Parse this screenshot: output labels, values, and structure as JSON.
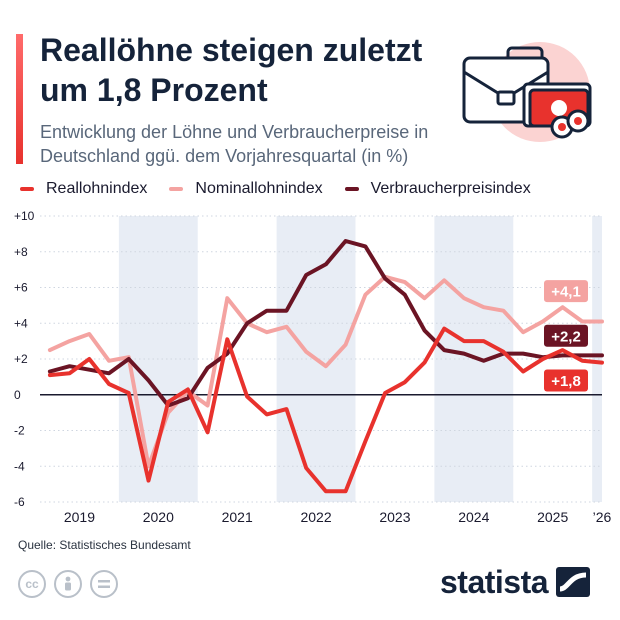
{
  "header": {
    "title": "Reallöhne steigen zuletzt um 1,8 Prozent",
    "subtitle": "Entwicklung der Löhne und Verbraucherpreise in Deutschland ggü. dem Vorjahresquartal (in %)"
  },
  "colors": {
    "real": "#e8322d",
    "nominal": "#f4a3a1",
    "cpi": "#6b1424",
    "band": "#e8edf5",
    "grid": "#cfd6e0"
  },
  "legend": [
    {
      "label": "Reallohnindex",
      "color": "#e8322d"
    },
    {
      "label": "Nominallohnindex",
      "color": "#f4a3a1"
    },
    {
      "label": "Verbraucherpreisindex",
      "color": "#6b1424"
    }
  ],
  "chart_data": {
    "type": "line",
    "ylim": [
      -6,
      10
    ],
    "y_ticks": [
      -6,
      -4,
      -2,
      0,
      2,
      4,
      6,
      8,
      10
    ],
    "y_tick_labels": [
      "-6",
      "-4",
      "-2",
      "0",
      "+2",
      "+4",
      "+6",
      "+8",
      "+10"
    ],
    "x": [
      "2019-Q1",
      "2019-Q2",
      "2019-Q3",
      "2019-Q4",
      "2020-Q1",
      "2020-Q2",
      "2020-Q3",
      "2020-Q4",
      "2021-Q1",
      "2021-Q2",
      "2021-Q3",
      "2021-Q4",
      "2022-Q1",
      "2022-Q2",
      "2022-Q3",
      "2022-Q4",
      "2023-Q1",
      "2023-Q2",
      "2023-Q3",
      "2023-Q4",
      "2024-Q1",
      "2024-Q2",
      "2024-Q3",
      "2024-Q4",
      "2025-Q1",
      "2025-Q2",
      "2025-Q3",
      "2025-Q4",
      "2026-Q1"
    ],
    "year_labels": [
      {
        "label": "2019",
        "start": 0,
        "end": 3
      },
      {
        "label": "2020",
        "start": 4,
        "end": 7
      },
      {
        "label": "2021",
        "start": 8,
        "end": 11
      },
      {
        "label": "2022",
        "start": 12,
        "end": 15
      },
      {
        "label": "2023",
        "start": 16,
        "end": 19
      },
      {
        "label": "2024",
        "start": 20,
        "end": 23
      },
      {
        "label": "2025",
        "start": 24,
        "end": 27
      },
      {
        "label": "’26",
        "start": 28,
        "end": 28
      }
    ],
    "shaded_years": [
      1,
      3,
      5,
      7
    ],
    "series": [
      {
        "name": "Nominallohnindex",
        "key": "nominal",
        "values": [
          2.5,
          3.0,
          3.4,
          1.9,
          2.1,
          -4.0,
          -1.0,
          0.2,
          -0.6,
          5.4,
          4.0,
          3.5,
          3.8,
          2.4,
          1.6,
          2.8,
          5.6,
          6.6,
          6.3,
          5.4,
          6.4,
          5.4,
          4.9,
          4.7,
          3.5,
          4.1,
          4.9,
          4.1,
          4.1
        ],
        "end_label": "+4,1"
      },
      {
        "name": "Verbraucherpreisindex",
        "key": "cpi",
        "values": [
          1.3,
          1.6,
          1.4,
          1.2,
          2.0,
          0.8,
          -0.6,
          -0.2,
          1.5,
          2.3,
          4.0,
          4.7,
          4.7,
          6.7,
          7.3,
          8.6,
          8.3,
          6.5,
          5.6,
          3.6,
          2.5,
          2.3,
          1.9,
          2.3,
          2.3,
          2.1,
          2.2,
          2.2,
          2.2
        ],
        "end_label": "+2,2"
      },
      {
        "name": "Reallohnindex",
        "key": "real",
        "values": [
          1.1,
          1.2,
          2.0,
          0.6,
          0.1,
          -4.8,
          -0.4,
          0.3,
          -2.1,
          3.1,
          -0.1,
          -1.1,
          -0.8,
          -4.1,
          -5.4,
          -5.4,
          -2.6,
          0.1,
          0.7,
          1.8,
          3.7,
          3.0,
          3.0,
          2.4,
          1.3,
          2.0,
          2.5,
          1.9,
          1.8
        ],
        "end_label": "+1,8"
      }
    ]
  },
  "footer": {
    "source": "Quelle: Statistisches Bundesamt",
    "cc_icons": [
      "cc-icon",
      "by-icon",
      "equals-icon"
    ],
    "brand": "statista"
  }
}
